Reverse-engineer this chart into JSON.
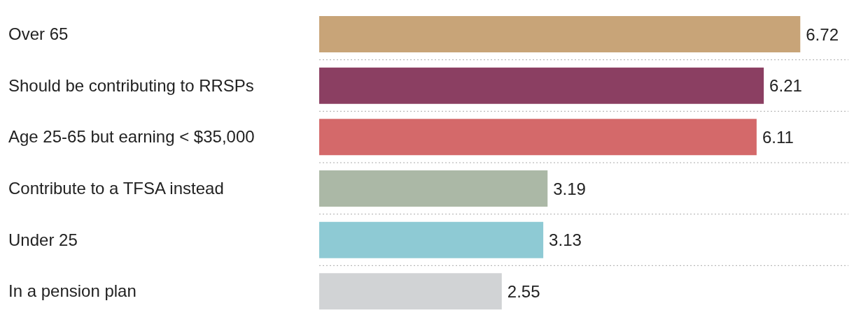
{
  "chart_data": {
    "type": "bar",
    "orientation": "horizontal",
    "tick_labels": "y",
    "categories": [
      "Over 65",
      "Should be contributing to RRSPs",
      "Age 25-65 but earning < $35,000",
      "Contribute to a TFSA instead",
      "Under 25",
      "In a pension plan"
    ],
    "values": [
      6.72,
      6.21,
      6.11,
      3.19,
      3.13,
      2.55
    ],
    "colors": [
      "#c8a478",
      "#8b3f62",
      "#d4696a",
      "#abb8a6",
      "#8ecad4",
      "#d1d3d5"
    ],
    "data_labels": true,
    "grid": "y"
  }
}
